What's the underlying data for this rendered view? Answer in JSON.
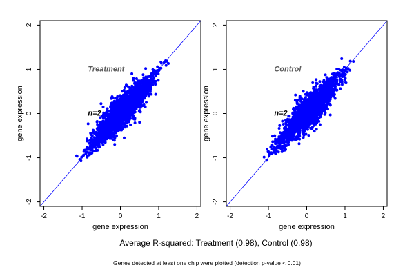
{
  "footer": {
    "summary": "Average R-squared: Treatment (0.98), Control (0.98)",
    "note": "Genes detected at least one chip were plotted (detection p-value < 0.01)"
  },
  "colors": {
    "points": "#0000ff",
    "diagonal": "#0000ff",
    "panel_label": "#5a5a5a",
    "axis": "#000000"
  },
  "chart_data": [
    {
      "type": "scatter",
      "title": "Treatment",
      "annotation": "n=2",
      "xlabel": "gene expression",
      "ylabel": "gene expression",
      "xlim": [
        -2.1,
        2.1
      ],
      "ylim": [
        -2.1,
        2.1
      ],
      "xticks": [
        -2,
        -1,
        0,
        1,
        2
      ],
      "yticks": [
        -2,
        -1,
        0,
        1,
        2
      ],
      "reference_line": "y = x",
      "grid": false,
      "cloud": {
        "x_range": [
          -1.05,
          1.2
        ],
        "correlation": 0.98,
        "n_points": "approx. 2000 (dense cloud)"
      },
      "outliers": [
        [
          -0.45,
          0.15
        ],
        [
          0.5,
          -0.2
        ],
        [
          -0.15,
          -0.7
        ],
        [
          0.3,
          0.9
        ],
        [
          -0.6,
          -0.25
        ],
        [
          0.65,
          0.15
        ],
        [
          -0.2,
          0.35
        ],
        [
          0.1,
          -0.55
        ]
      ]
    },
    {
      "type": "scatter",
      "title": "Control",
      "annotation": "n=2",
      "xlabel": "gene expression",
      "ylabel": "gene expression",
      "xlim": [
        -2.1,
        2.1
      ],
      "ylim": [
        -2.1,
        2.1
      ],
      "xticks": [
        -2,
        -1,
        0,
        1,
        2
      ],
      "yticks": [
        -2,
        -1,
        0,
        1,
        2
      ],
      "reference_line": "y = x",
      "grid": false,
      "cloud": {
        "x_range": [
          -1.05,
          1.2
        ],
        "correlation": 0.98,
        "n_points": "approx. 2000 (dense cloud)"
      },
      "outliers": [
        [
          -0.3,
          0.3
        ],
        [
          0.35,
          -0.25
        ],
        [
          -0.55,
          -0.15
        ],
        [
          0.45,
          0.75
        ],
        [
          -0.25,
          0.25
        ],
        [
          0.2,
          -0.4
        ],
        [
          -0.2,
          0.1
        ],
        [
          0.55,
          0.1
        ]
      ]
    }
  ]
}
